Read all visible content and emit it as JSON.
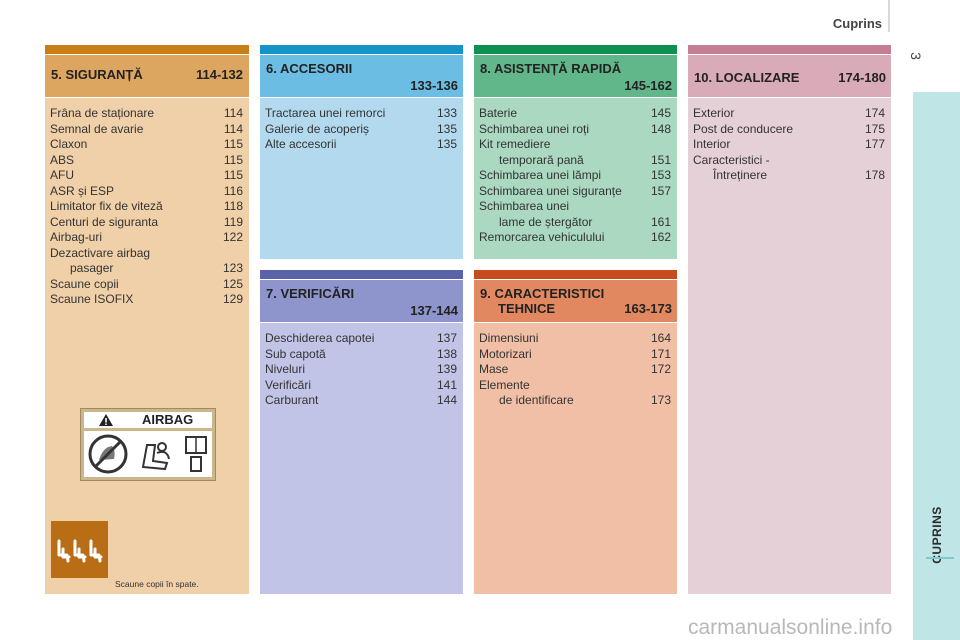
{
  "header": {
    "title": "Cuprins",
    "page_number": "3",
    "side_tab": "CUPRINS"
  },
  "colors": {
    "s5": {
      "strip": "#c87e16",
      "head": "#dda660",
      "body": "#f0d0a8"
    },
    "s6": {
      "strip": "#1694c8",
      "head": "#6bbde3",
      "body": "#b3d9ef"
    },
    "s7": {
      "strip": "#5a62a8",
      "head": "#8e94cc",
      "body": "#c1c4e6"
    },
    "s8": {
      "strip": "#0e9150",
      "head": "#62b78a",
      "body": "#aad8c0"
    },
    "s9": {
      "strip": "#c84b20",
      "head": "#e28860",
      "body": "#f0bfa6"
    },
    "s10": {
      "strip": "#c47f92",
      "head": "#d9aab8",
      "body": "#e6d0d7"
    },
    "side_tab": "#bfe5e6"
  },
  "sections": {
    "s5": {
      "title": "5. SIGURANȚĂ",
      "range": "114-132",
      "items": [
        {
          "label": "Frâna de staționare",
          "page": "114"
        },
        {
          "label": "Semnal de avarie",
          "page": "114"
        },
        {
          "label": "Claxon",
          "page": "115"
        },
        {
          "label": "ABS",
          "page": "115"
        },
        {
          "label": "AFU",
          "page": "115"
        },
        {
          "label": "ASR și ESP",
          "page": "116"
        },
        {
          "label": "Limitator fix de viteză",
          "page": "118"
        },
        {
          "label": "Centuri de siguranta",
          "page": "119"
        },
        {
          "label": "Airbag-uri",
          "page": "122"
        },
        {
          "label": "Dezactivare airbag",
          "page": ""
        },
        {
          "label": "pasager",
          "page": "123"
        },
        {
          "label": "Scaune copii",
          "page": "125"
        },
        {
          "label": "Scaune ISOFIX",
          "page": "129"
        }
      ],
      "airbag_label": "AIRBAG",
      "icon_caption": "Scaune copii în spate."
    },
    "s6": {
      "title": "6. ACCESORII",
      "range": "133-136",
      "items": [
        {
          "label": "Tractarea unei remorci",
          "page": "133"
        },
        {
          "label": "Galerie de acoperiș",
          "page": "135"
        },
        {
          "label": "Alte accesorii",
          "page": "135"
        }
      ]
    },
    "s7": {
      "title": "7. VERIFICĂRI",
      "range": "137-144",
      "items": [
        {
          "label": "Deschiderea capotei",
          "page": "137"
        },
        {
          "label": "Sub capotă",
          "page": "138"
        },
        {
          "label": "Niveluri",
          "page": "139"
        },
        {
          "label": "Verificări",
          "page": "141"
        },
        {
          "label": "Carburant",
          "page": "144"
        }
      ]
    },
    "s8": {
      "title": "8. ASISTENȚĂ RAPIDĂ",
      "range": "145-162",
      "items": [
        {
          "label": "Baterie",
          "page": "145"
        },
        {
          "label": "Schimbarea unei roți",
          "page": "148"
        },
        {
          "label": "Kit remediere",
          "page": ""
        },
        {
          "label": "temporară pană",
          "page": "151"
        },
        {
          "label": "Schimbarea unei lămpi",
          "page": "153"
        },
        {
          "label": "Schimbarea unei siguranțe",
          "page": "157"
        },
        {
          "label": "Schimbarea unei",
          "page": ""
        },
        {
          "label": "lame de ștergător",
          "page": "161"
        },
        {
          "label": "Remorcarea vehiculului",
          "page": "162"
        }
      ]
    },
    "s9": {
      "title": "9. CARACTERISTICI",
      "title2": "TEHNICE",
      "range": "163-173",
      "items": [
        {
          "label": "Dimensiuni",
          "page": "164"
        },
        {
          "label": "Motorizari",
          "page": "171"
        },
        {
          "label": "Mase",
          "page": "172"
        },
        {
          "label": "Elemente",
          "page": ""
        },
        {
          "label": "de identificare",
          "page": "173"
        }
      ]
    },
    "s10": {
      "title": "10. LOCALIZARE",
      "range": "174-180",
      "items": [
        {
          "label": "Exterior",
          "page": "174"
        },
        {
          "label": "Post de conducere",
          "page": "175"
        },
        {
          "label": "Interior",
          "page": "177"
        },
        {
          "label": "Caracteristici -",
          "page": ""
        },
        {
          "label": "Întreținere",
          "page": "178"
        }
      ]
    }
  },
  "watermark": "carmanualsonline.info"
}
